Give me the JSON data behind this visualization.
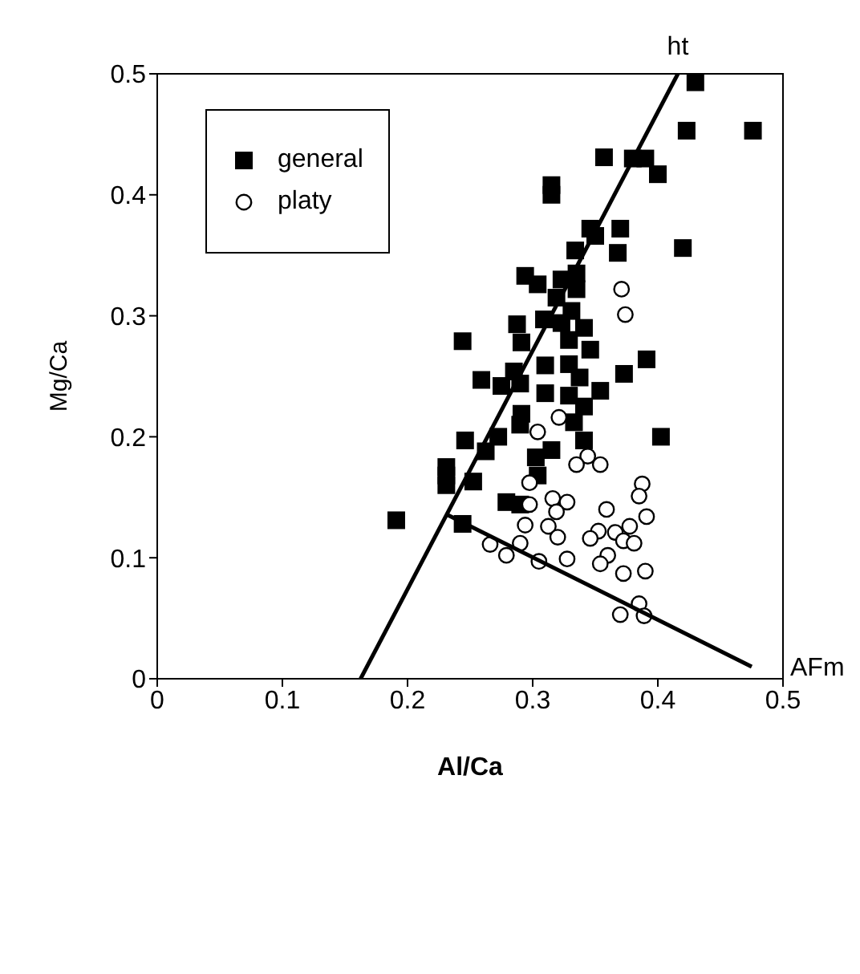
{
  "chart_data": {
    "type": "scatter",
    "xlabel": "Al/Ca",
    "ylabel": "Mg/Ca",
    "xlim": [
      0,
      0.5
    ],
    "ylim": [
      0,
      0.5
    ],
    "xticks": [
      0,
      0.1,
      0.2,
      0.3,
      0.4,
      0.5
    ],
    "yticks": [
      0,
      0.1,
      0.2,
      0.3,
      0.4,
      0.5
    ],
    "grid": false,
    "legend": "top left",
    "series": [
      {
        "name": "general",
        "color": "#000000",
        "marker": "square",
        "x": [
          0.43,
          0.423,
          0.476,
          0.357,
          0.38,
          0.39,
          0.4,
          0.315,
          0.315,
          0.346,
          0.37,
          0.35,
          0.334,
          0.368,
          0.42,
          0.294,
          0.304,
          0.323,
          0.335,
          0.335,
          0.319,
          0.331,
          0.2875,
          0.309,
          0.323,
          0.341,
          0.291,
          0.329,
          0.346,
          0.244,
          0.391,
          0.31,
          0.329,
          0.285,
          0.373,
          0.3375,
          0.259,
          0.275,
          0.29,
          0.354,
          0.31,
          0.329,
          0.341,
          0.291,
          0.29,
          0.333,
          0.4025,
          0.246,
          0.2725,
          0.341,
          0.2625,
          0.315,
          0.3025,
          0.231,
          0.231,
          0.231,
          0.2525,
          0.304,
          0.279,
          0.29,
          0.191,
          0.244
        ],
        "values": [
          0.493,
          0.453,
          0.453,
          0.431,
          0.43,
          0.43,
          0.417,
          0.408,
          0.4,
          0.372,
          0.372,
          0.366,
          0.354,
          0.352,
          0.356,
          0.333,
          0.326,
          0.33,
          0.335,
          0.322,
          0.315,
          0.304,
          0.293,
          0.297,
          0.294,
          0.29,
          0.278,
          0.28,
          0.272,
          0.279,
          0.264,
          0.259,
          0.26,
          0.254,
          0.252,
          0.249,
          0.247,
          0.242,
          0.244,
          0.238,
          0.236,
          0.234,
          0.225,
          0.219,
          0.21,
          0.212,
          0.2,
          0.197,
          0.2,
          0.197,
          0.188,
          0.189,
          0.183,
          0.175,
          0.168,
          0.16,
          0.163,
          0.168,
          0.146,
          0.144,
          0.131,
          0.128
        ]
      },
      {
        "name": "platy",
        "color": "#000000",
        "marker": "circle",
        "x": [
          0.371,
          0.374,
          0.321,
          0.304,
          0.344,
          0.335,
          0.354,
          0.2975,
          0.3875,
          0.385,
          0.316,
          0.3275,
          0.2975,
          0.319,
          0.359,
          0.391,
          0.294,
          0.3125,
          0.3775,
          0.3525,
          0.366,
          0.32,
          0.346,
          0.3725,
          0.381,
          0.29,
          0.266,
          0.36,
          0.279,
          0.354,
          0.3275,
          0.305,
          0.3725,
          0.39,
          0.385,
          0.37,
          0.389
        ],
        "values": [
          0.322,
          0.301,
          0.216,
          0.204,
          0.184,
          0.177,
          0.177,
          0.162,
          0.161,
          0.151,
          0.149,
          0.146,
          0.144,
          0.138,
          0.14,
          0.134,
          0.127,
          0.126,
          0.126,
          0.122,
          0.121,
          0.117,
          0.116,
          0.114,
          0.112,
          0.112,
          0.111,
          0.102,
          0.102,
          0.095,
          0.099,
          0.097,
          0.087,
          0.089,
          0.062,
          0.053,
          0.052
        ]
      },
      {
        "type": "line",
        "color": "#000000",
        "marker": "none",
        "x": [
          0.1625,
          0.416
        ],
        "values": [
          0,
          0.5
        ]
      },
      {
        "type": "line",
        "color": "#000000",
        "marker": "none",
        "x": [
          0.231,
          0.475
        ],
        "values": [
          0.136,
          0.01
        ]
      }
    ],
    "annotations": [
      {
        "text": "ht",
        "x": 0.416,
        "y": 0.5
      },
      {
        "text": "AFm",
        "x": 0.475,
        "y": 0.01
      }
    ]
  }
}
